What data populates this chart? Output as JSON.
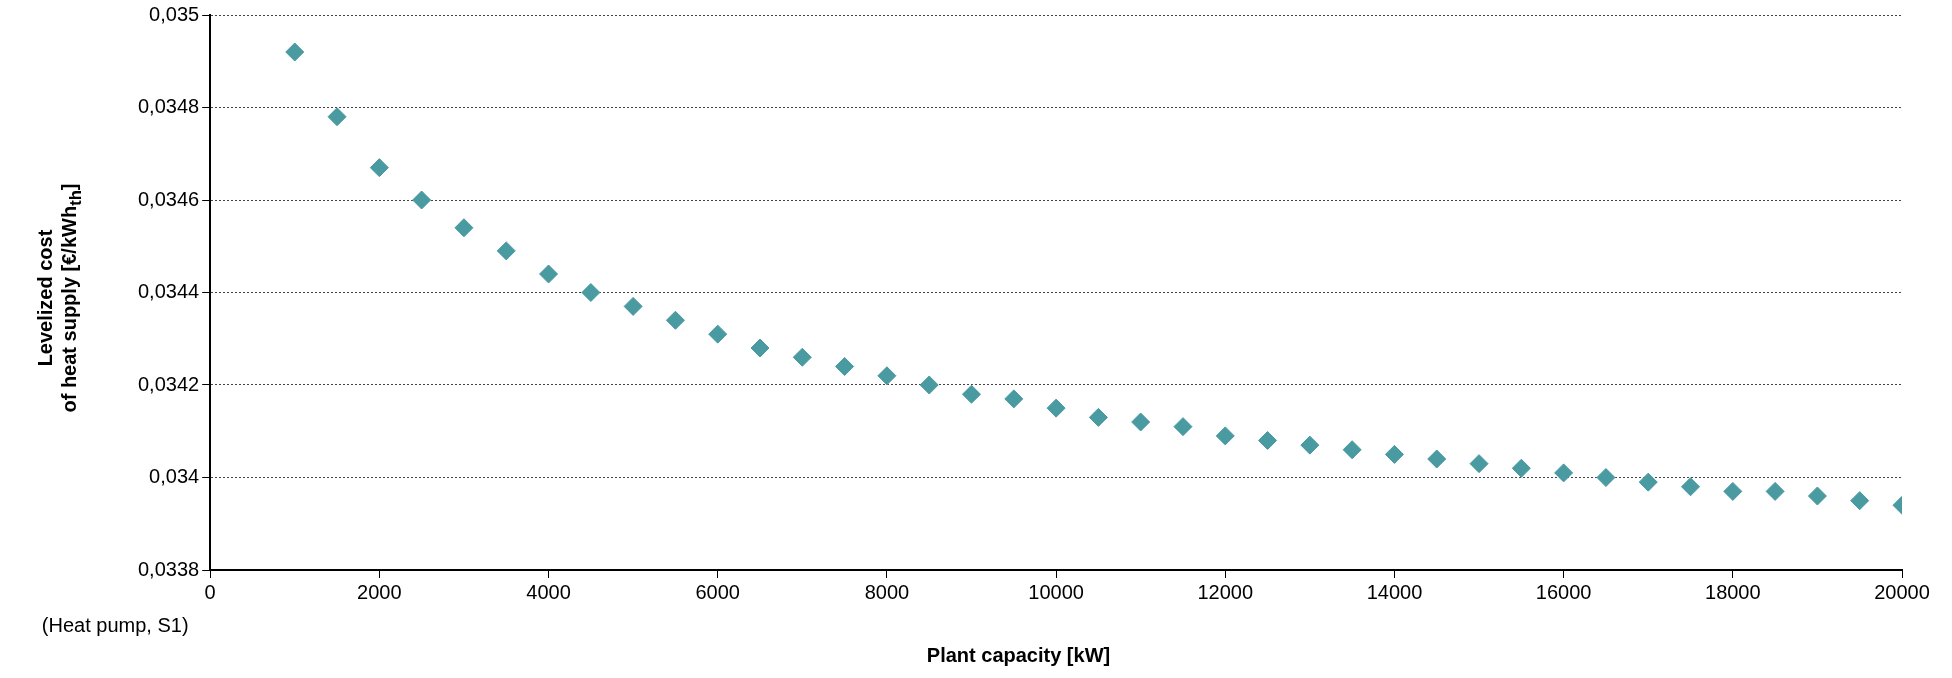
{
  "chart_data": {
    "type": "scatter",
    "xlabel": "Plant capacity [kW]",
    "ylabel": "Levelized cost\nof heat supply [€/kWh$_{th}$]",
    "annotations": [
      "(Heat pump, S1)"
    ],
    "x": [
      1000,
      1500,
      2000,
      2500,
      3000,
      3500,
      4000,
      4500,
      5000,
      5500,
      6000,
      6500,
      7000,
      7500,
      8000,
      8500,
      9000,
      9500,
      10000,
      10500,
      11000,
      11500,
      12000,
      12500,
      13000,
      13500,
      14000,
      14500,
      15000,
      15500,
      16000,
      16500,
      17000,
      17500,
      18000,
      18500,
      19000,
      19500,
      20000
    ],
    "series": [
      {
        "color": "#4a9aa2",
        "values": [
          0.03492,
          0.03478,
          0.03467,
          0.0346,
          0.03454,
          0.03449,
          0.03444,
          0.0344,
          0.03437,
          0.03434,
          0.03431,
          0.03428,
          0.03426,
          0.03424,
          0.03422,
          0.0342,
          0.03418,
          0.03417,
          0.03415,
          0.03413,
          0.03412,
          0.03411,
          0.03409,
          0.03408,
          0.03407,
          0.03406,
          0.03405,
          0.03404,
          0.03403,
          0.03402,
          0.03401,
          0.034,
          0.03399,
          0.03398,
          0.03397,
          0.03397,
          0.03396,
          0.03395,
          0.03394
        ]
      }
    ],
    "xlim": [
      0,
      20000
    ],
    "xticks": [
      0,
      2000,
      4000,
      6000,
      8000,
      10000,
      12000,
      14000,
      16000,
      18000,
      20000
    ],
    "ylim": [
      0.0338,
      0.035
    ],
    "yticks": [
      {
        "value": 0.0338,
        "label": "0,0338"
      },
      {
        "value": 0.034,
        "label": "0,034"
      },
      {
        "value": 0.0342,
        "label": "0,0342"
      },
      {
        "value": 0.0344,
        "label": "0,0344"
      },
      {
        "value": 0.0346,
        "label": "0,0346"
      },
      {
        "value": 0.0348,
        "label": "0,0348"
      },
      {
        "value": 0.035,
        "label": "0,035"
      }
    ],
    "grid": "y",
    "legend": false,
    "marker": "diamond"
  }
}
